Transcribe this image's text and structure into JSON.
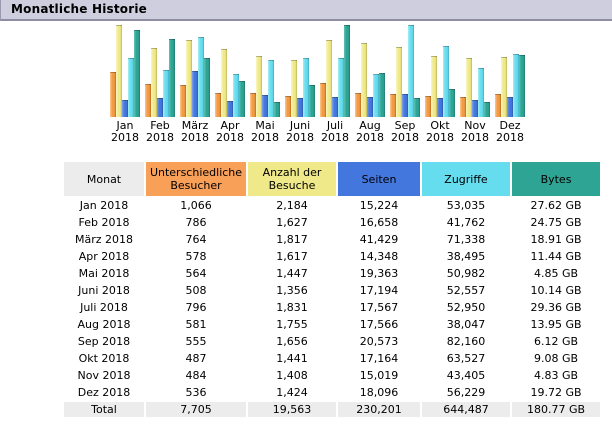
{
  "header": {
    "title": "Monatliche Historie"
  },
  "colors": {
    "title_bar_bg": "#cecede",
    "title_bar_border": "#8d8da4",
    "header_grey": "#ececec",
    "visitors": {
      "base": "#f29a44",
      "light": "#ffc78f",
      "dark": "#b96f1f"
    },
    "visits": {
      "base": "#efe98a",
      "light": "#faf7c4",
      "dark": "#bdb75d"
    },
    "pages": {
      "base": "#4477dd",
      "light": "#7fa3e8",
      "dark": "#2c58ae"
    },
    "hits": {
      "base": "#66ddee",
      "light": "#a8edf6",
      "dark": "#3faec4"
    },
    "bytes": {
      "base": "#2ea495",
      "light": "#5fc4b4",
      "dark": "#1d7a6e"
    }
  },
  "chart_data": {
    "type": "bar",
    "title": "Monatliche Historie",
    "categories": [
      "Jan 2018",
      "Feb 2018",
      "März 2018",
      "Apr 2018",
      "Mai 2018",
      "Juni 2018",
      "Juli 2018",
      "Aug 2018",
      "Sep 2018",
      "Okt 2018",
      "Nov 2018",
      "Dez 2018"
    ],
    "series": [
      {
        "name": "Unterschiedliche Besucher",
        "color_key": "visitors",
        "scale_group": "uv",
        "values": [
          1066,
          786,
          764,
          578,
          564,
          508,
          796,
          581,
          555,
          487,
          484,
          536
        ]
      },
      {
        "name": "Anzahl der Besuche",
        "color_key": "visits",
        "scale_group": "uv",
        "values": [
          2184,
          1627,
          1817,
          1617,
          1447,
          1356,
          1831,
          1755,
          1656,
          1441,
          1408,
          1424
        ]
      },
      {
        "name": "Seiten",
        "color_key": "pages",
        "scale_group": "ph",
        "values": [
          15224,
          16658,
          41429,
          14348,
          19363,
          17194,
          17567,
          17566,
          20573,
          17164,
          15019,
          18096
        ]
      },
      {
        "name": "Zugriffe",
        "color_key": "hits",
        "scale_group": "ph",
        "values": [
          53035,
          41762,
          71338,
          38495,
          50982,
          52557,
          52950,
          38047,
          82160,
          63527,
          43405,
          56229
        ]
      },
      {
        "name": "Bytes",
        "color_key": "bytes",
        "scale_group": "k",
        "unit": "GB",
        "values": [
          27.62,
          24.75,
          18.91,
          11.44,
          4.85,
          10.14,
          29.36,
          13.95,
          6.12,
          9.08,
          4.83,
          19.72
        ]
      }
    ],
    "legend_position": "table-headers",
    "grid": false,
    "note": "Each scale_group is normalized independently to the plot height"
  },
  "table": {
    "columns": [
      {
        "label": "Monat",
        "bg": "#ececec",
        "width_class": "w-monat"
      },
      {
        "label": "Unterschiedliche Besucher",
        "bg": "#f89f58",
        "width_class": "w-ub"
      },
      {
        "label": "Anzahl der Besuche",
        "bg": "#efe98a",
        "width_class": "w-adb"
      },
      {
        "label": "Seiten",
        "bg": "#4477dd",
        "width_class": "w-seiten"
      },
      {
        "label": "Zugriffe",
        "bg": "#66ddee",
        "width_class": "w-zugriffe"
      },
      {
        "label": "Bytes",
        "bg": "#2ea495",
        "width_class": "w-bytes"
      }
    ],
    "rows": [
      [
        "Jan 2018",
        "1,066",
        "2,184",
        "15,224",
        "53,035",
        "27.62 GB"
      ],
      [
        "Feb 2018",
        "786",
        "1,627",
        "16,658",
        "41,762",
        "24.75 GB"
      ],
      [
        "März 2018",
        "764",
        "1,817",
        "41,429",
        "71,338",
        "18.91 GB"
      ],
      [
        "Apr 2018",
        "578",
        "1,617",
        "14,348",
        "38,495",
        "11.44 GB"
      ],
      [
        "Mai 2018",
        "564",
        "1,447",
        "19,363",
        "50,982",
        "4.85 GB"
      ],
      [
        "Juni 2018",
        "508",
        "1,356",
        "17,194",
        "52,557",
        "10.14 GB"
      ],
      [
        "Juli 2018",
        "796",
        "1,831",
        "17,567",
        "52,950",
        "29.36 GB"
      ],
      [
        "Aug 2018",
        "581",
        "1,755",
        "17,566",
        "38,047",
        "13.95 GB"
      ],
      [
        "Sep 2018",
        "555",
        "1,656",
        "20,573",
        "82,160",
        "6.12 GB"
      ],
      [
        "Okt 2018",
        "487",
        "1,441",
        "17,164",
        "63,527",
        "9.08 GB"
      ],
      [
        "Nov 2018",
        "484",
        "1,408",
        "15,019",
        "43,405",
        "4.83 GB"
      ],
      [
        "Dez 2018",
        "536",
        "1,424",
        "18,096",
        "56,229",
        "19.72 GB"
      ]
    ],
    "total_row": [
      "Total",
      "7,705",
      "19,563",
      "230,201",
      "644,487",
      "180.77 GB"
    ]
  }
}
